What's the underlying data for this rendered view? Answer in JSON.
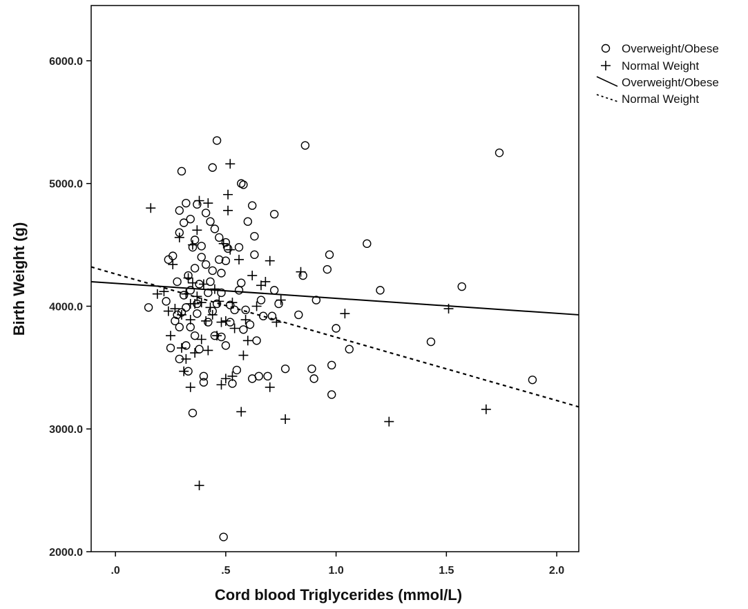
{
  "chart_data": {
    "type": "scatter",
    "title": "",
    "xlabel": "Cord blood Triglycerides (mmol/L)",
    "ylabel": "Birth Weight (g)",
    "xlim": [
      -0.11,
      2.1
    ],
    "ylim": [
      2000,
      6450
    ],
    "x_ticks": [
      0,
      0.5,
      1.0,
      1.5,
      2.0
    ],
    "x_tick_labels": [
      ".0",
      ".5",
      "1.0",
      "1.5",
      "2.0"
    ],
    "y_ticks": [
      2000,
      3000,
      4000,
      5000,
      6000
    ],
    "y_tick_labels": [
      "2000.0",
      "3000.0",
      "4000.0",
      "5000.0",
      "6000.0"
    ],
    "grid": false,
    "legend_position": "right",
    "legend": [
      {
        "label": "Overweight/Obese",
        "marker": "circle"
      },
      {
        "label": "Normal Weight",
        "marker": "plus"
      },
      {
        "label": "Overweight/Obese",
        "marker": "solid-line"
      },
      {
        "label": "Normal Weight",
        "marker": "dashed-line"
      }
    ],
    "series": [
      {
        "name": "Overweight/Obese",
        "marker": "circle",
        "points": [
          [
            0.15,
            3990
          ],
          [
            0.23,
            4040
          ],
          [
            0.24,
            4380
          ],
          [
            0.25,
            3660
          ],
          [
            0.26,
            4410
          ],
          [
            0.27,
            3880
          ],
          [
            0.28,
            3930
          ],
          [
            0.28,
            4200
          ],
          [
            0.29,
            3570
          ],
          [
            0.29,
            3830
          ],
          [
            0.29,
            4600
          ],
          [
            0.29,
            4780
          ],
          [
            0.3,
            5100
          ],
          [
            0.3,
            3950
          ],
          [
            0.31,
            4680
          ],
          [
            0.31,
            4090
          ],
          [
            0.32,
            4840
          ],
          [
            0.32,
            3990
          ],
          [
            0.32,
            3680
          ],
          [
            0.33,
            3470
          ],
          [
            0.33,
            4250
          ],
          [
            0.34,
            3830
          ],
          [
            0.34,
            4710
          ],
          [
            0.34,
            4130
          ],
          [
            0.35,
            3130
          ],
          [
            0.35,
            4480
          ],
          [
            0.36,
            4540
          ],
          [
            0.36,
            3760
          ],
          [
            0.36,
            4310
          ],
          [
            0.37,
            3940
          ],
          [
            0.37,
            4020
          ],
          [
            0.37,
            4830
          ],
          [
            0.38,
            4180
          ],
          [
            0.38,
            3650
          ],
          [
            0.39,
            4400
          ],
          [
            0.39,
            4490
          ],
          [
            0.4,
            3380
          ],
          [
            0.4,
            3430
          ],
          [
            0.41,
            4340
          ],
          [
            0.41,
            4760
          ],
          [
            0.42,
            4110
          ],
          [
            0.42,
            3870
          ],
          [
            0.43,
            4690
          ],
          [
            0.43,
            4200
          ],
          [
            0.44,
            5130
          ],
          [
            0.44,
            3960
          ],
          [
            0.44,
            4290
          ],
          [
            0.45,
            4630
          ],
          [
            0.45,
            3760
          ],
          [
            0.46,
            5350
          ],
          [
            0.46,
            4020
          ],
          [
            0.47,
            4560
          ],
          [
            0.47,
            4380
          ],
          [
            0.48,
            3750
          ],
          [
            0.48,
            4110
          ],
          [
            0.48,
            4270
          ],
          [
            0.49,
            2120
          ],
          [
            0.5,
            3680
          ],
          [
            0.5,
            4370
          ],
          [
            0.5,
            4520
          ],
          [
            0.51,
            4470
          ],
          [
            0.52,
            3870
          ],
          [
            0.52,
            4010
          ],
          [
            0.53,
            3370
          ],
          [
            0.54,
            3970
          ],
          [
            0.55,
            3480
          ],
          [
            0.56,
            4130
          ],
          [
            0.56,
            4480
          ],
          [
            0.57,
            4190
          ],
          [
            0.57,
            5000
          ],
          [
            0.58,
            4990
          ],
          [
            0.58,
            3810
          ],
          [
            0.59,
            3970
          ],
          [
            0.6,
            4690
          ],
          [
            0.61,
            3850
          ],
          [
            0.62,
            3410
          ],
          [
            0.62,
            4820
          ],
          [
            0.63,
            4570
          ],
          [
            0.63,
            4420
          ],
          [
            0.64,
            3720
          ],
          [
            0.65,
            3430
          ],
          [
            0.66,
            4050
          ],
          [
            0.67,
            3920
          ],
          [
            0.69,
            3430
          ],
          [
            0.71,
            3920
          ],
          [
            0.72,
            4750
          ],
          [
            0.72,
            4130
          ],
          [
            0.74,
            4020
          ],
          [
            0.77,
            3490
          ],
          [
            0.83,
            3930
          ],
          [
            0.85,
            4250
          ],
          [
            0.86,
            5310
          ],
          [
            0.89,
            3490
          ],
          [
            0.9,
            3410
          ],
          [
            0.91,
            4050
          ],
          [
            0.96,
            4300
          ],
          [
            0.97,
            4420
          ],
          [
            0.98,
            3280
          ],
          [
            0.98,
            3520
          ],
          [
            1.0,
            3820
          ],
          [
            1.06,
            3650
          ],
          [
            1.14,
            4510
          ],
          [
            1.2,
            4130
          ],
          [
            1.43,
            3710
          ],
          [
            1.57,
            4160
          ],
          [
            1.74,
            5250
          ],
          [
            1.89,
            3400
          ]
        ]
      },
      {
        "name": "Normal Weight",
        "marker": "plus",
        "points": [
          [
            0.16,
            4800
          ],
          [
            0.19,
            4100
          ],
          [
            0.22,
            4120
          ],
          [
            0.24,
            3960
          ],
          [
            0.25,
            3760
          ],
          [
            0.26,
            4340
          ],
          [
            0.27,
            3980
          ],
          [
            0.29,
            4560
          ],
          [
            0.3,
            3930
          ],
          [
            0.3,
            3660
          ],
          [
            0.31,
            3470
          ],
          [
            0.32,
            4100
          ],
          [
            0.32,
            3570
          ],
          [
            0.33,
            4230
          ],
          [
            0.34,
            3340
          ],
          [
            0.34,
            3890
          ],
          [
            0.34,
            4020
          ],
          [
            0.35,
            4500
          ],
          [
            0.35,
            4190
          ],
          [
            0.36,
            3620
          ],
          [
            0.36,
            4020
          ],
          [
            0.37,
            4620
          ],
          [
            0.37,
            4080
          ],
          [
            0.38,
            4860
          ],
          [
            0.38,
            2540
          ],
          [
            0.39,
            4030
          ],
          [
            0.39,
            3730
          ],
          [
            0.4,
            4180
          ],
          [
            0.41,
            3880
          ],
          [
            0.42,
            4840
          ],
          [
            0.42,
            3640
          ],
          [
            0.43,
            3990
          ],
          [
            0.44,
            3930
          ],
          [
            0.45,
            4140
          ],
          [
            0.46,
            3760
          ],
          [
            0.47,
            4040
          ],
          [
            0.48,
            3870
          ],
          [
            0.48,
            3360
          ],
          [
            0.49,
            4510
          ],
          [
            0.5,
            3410
          ],
          [
            0.5,
            3880
          ],
          [
            0.51,
            4910
          ],
          [
            0.51,
            4780
          ],
          [
            0.52,
            5160
          ],
          [
            0.52,
            4460
          ],
          [
            0.53,
            3430
          ],
          [
            0.53,
            4030
          ],
          [
            0.54,
            3820
          ],
          [
            0.56,
            4380
          ],
          [
            0.57,
            3140
          ],
          [
            0.58,
            3600
          ],
          [
            0.59,
            3890
          ],
          [
            0.6,
            3720
          ],
          [
            0.62,
            4250
          ],
          [
            0.64,
            4000
          ],
          [
            0.66,
            4170
          ],
          [
            0.68,
            4200
          ],
          [
            0.7,
            4370
          ],
          [
            0.7,
            3340
          ],
          [
            0.73,
            3870
          ],
          [
            0.75,
            4050
          ],
          [
            0.77,
            3080
          ],
          [
            0.84,
            4280
          ],
          [
            1.04,
            3940
          ],
          [
            1.24,
            3060
          ],
          [
            1.51,
            3980
          ],
          [
            1.68,
            3160
          ]
        ]
      },
      {
        "name": "Overweight/Obese",
        "type": "line",
        "style": "solid",
        "points": [
          [
            -0.11,
            4200
          ],
          [
            2.1,
            3930
          ]
        ]
      },
      {
        "name": "Normal Weight",
        "type": "line",
        "style": "dashed",
        "points": [
          [
            -0.11,
            4320
          ],
          [
            2.1,
            3180
          ]
        ]
      }
    ]
  }
}
